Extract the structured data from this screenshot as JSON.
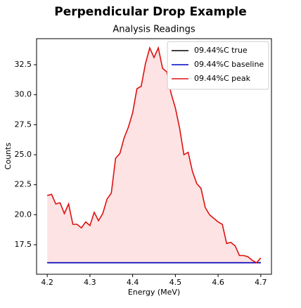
{
  "chart_data": {
    "type": "line",
    "title": "Perpendicular Drop Example",
    "subtitle": "Analysis Readings",
    "xlabel": "Energy (MeV)",
    "ylabel": "Counts",
    "x": [
      4.2,
      4.21,
      4.22,
      4.23,
      4.24,
      4.25,
      4.26,
      4.27,
      4.28,
      4.29,
      4.3,
      4.31,
      4.32,
      4.33,
      4.34,
      4.35,
      4.36,
      4.37,
      4.38,
      4.39,
      4.4,
      4.41,
      4.42,
      4.43,
      4.44,
      4.45,
      4.46,
      4.47,
      4.48,
      4.49,
      4.5,
      4.51,
      4.52,
      4.53,
      4.54,
      4.55,
      4.56,
      4.57,
      4.58,
      4.59,
      4.6,
      4.61,
      4.62,
      4.63,
      4.64,
      4.65,
      4.66,
      4.67,
      4.68,
      4.69,
      4.7
    ],
    "series": [
      {
        "name": "09.44%C true",
        "color": "#000000",
        "values": [
          16,
          16,
          16,
          16,
          16,
          16,
          16,
          16,
          16,
          16,
          16,
          16,
          16,
          16,
          16,
          16,
          16,
          16,
          16,
          16,
          16,
          16,
          16,
          16,
          16,
          16,
          16,
          16,
          16,
          16,
          16,
          16,
          16,
          16,
          16,
          16,
          16,
          16,
          16,
          16,
          16,
          16,
          16,
          16,
          16,
          16,
          16,
          16,
          16,
          16,
          16
        ]
      },
      {
        "name": "09.44%C baseline",
        "color": "#0000cc",
        "values": [
          16,
          16,
          16,
          16,
          16,
          16,
          16,
          16,
          16,
          16,
          16,
          16,
          16,
          16,
          16,
          16,
          16,
          16,
          16,
          16,
          16,
          16,
          16,
          16,
          16,
          16,
          16,
          16,
          16,
          16,
          16,
          16,
          16,
          16,
          16,
          16,
          16,
          16,
          16,
          16,
          16,
          16,
          16,
          16,
          16,
          16,
          16,
          16,
          16,
          16,
          16
        ]
      },
      {
        "name": "09.44%C peak",
        "color": "#dd1111",
        "values": [
          21.6,
          21.7,
          20.9,
          21.0,
          20.1,
          20.9,
          19.2,
          19.2,
          18.9,
          19.4,
          19.1,
          20.2,
          19.5,
          20.1,
          21.3,
          21.8,
          24.7,
          25.1,
          26.4,
          27.3,
          28.5,
          30.5,
          30.7,
          32.6,
          33.9,
          33.1,
          33.9,
          32.2,
          31.9,
          30.1,
          28.9,
          27.2,
          25.0,
          25.2,
          23.6,
          22.6,
          22.2,
          20.6,
          20.0,
          19.7,
          19.4,
          19.2,
          17.6,
          17.7,
          17.4,
          16.6,
          16.6,
          16.5,
          16.2,
          16.0,
          16.4
        ]
      }
    ],
    "fill_color": "#fde3e3",
    "xlim": [
      4.175,
      4.725
    ],
    "ylim": [
      15.04,
      34.67
    ],
    "xticks": [
      {
        "value": 4.2,
        "label": "4.2"
      },
      4.3,
      4.4,
      4.5,
      4.6,
      4.7
    ],
    "yticks": [
      17.5,
      {
        "value": 20,
        "label": "20.0"
      },
      22.5,
      {
        "value": 25,
        "label": "25.0"
      },
      27.5,
      {
        "value": 30,
        "label": "30.0"
      },
      32.5
    ],
    "legend": "upper right",
    "grid": false
  }
}
